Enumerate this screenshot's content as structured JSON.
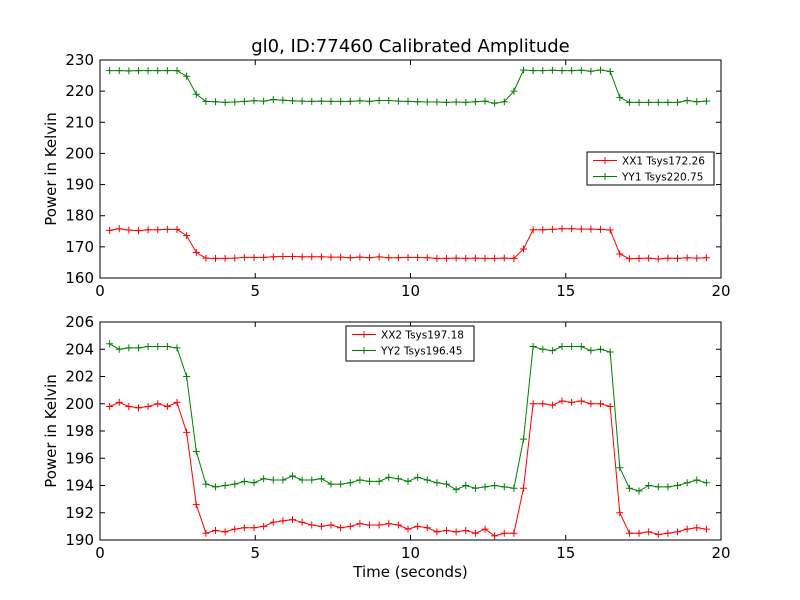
{
  "title": "gl0, ID:77460 Calibrated Amplitude",
  "colors": {
    "series1": "#ff0000",
    "series2": "#008000"
  },
  "chart_data": [
    {
      "type": "line",
      "ylabel": "Power in Kelvin",
      "xlabel": "",
      "xlim": [
        0,
        20
      ],
      "ylim": [
        160,
        230
      ],
      "xticks": [
        0,
        5,
        10,
        15,
        20
      ],
      "yticks": [
        160,
        170,
        180,
        190,
        200,
        210,
        220,
        230
      ],
      "grid": false,
      "legend_position": "center-right",
      "x": [
        0.31,
        0.62,
        0.93,
        1.24,
        1.55,
        1.86,
        2.17,
        2.48,
        2.79,
        3.1,
        3.41,
        3.72,
        4.03,
        4.34,
        4.65,
        4.96,
        5.27,
        5.58,
        5.89,
        6.2,
        6.51,
        6.82,
        7.13,
        7.44,
        7.75,
        8.06,
        8.37,
        8.68,
        8.99,
        9.3,
        9.61,
        9.92,
        10.23,
        10.54,
        10.85,
        11.16,
        11.47,
        11.78,
        12.09,
        12.4,
        12.71,
        13.02,
        13.33,
        13.64,
        13.95,
        14.26,
        14.57,
        14.88,
        15.19,
        15.5,
        15.81,
        16.12,
        16.43,
        16.74,
        17.05,
        17.36,
        17.67,
        17.98,
        18.29,
        18.6,
        18.91,
        19.22,
        19.53
      ],
      "series": [
        {
          "name": "XX1 Tsys172.26",
          "color": "#ff0000",
          "values": [
            175.3,
            175.8,
            175.4,
            175.2,
            175.5,
            175.5,
            175.6,
            175.6,
            173.6,
            168.2,
            166.4,
            166.3,
            166.3,
            166.4,
            166.6,
            166.6,
            166.6,
            166.8,
            166.9,
            166.9,
            166.8,
            166.8,
            166.8,
            166.7,
            166.7,
            166.5,
            166.7,
            166.5,
            166.8,
            166.5,
            166.5,
            166.6,
            166.6,
            166.5,
            166.3,
            166.3,
            166.4,
            166.3,
            166.4,
            166.3,
            166.3,
            166.4,
            166.3,
            169.3,
            175.5,
            175.5,
            175.6,
            175.8,
            175.8,
            175.7,
            175.7,
            175.6,
            175.4,
            167.7,
            166.2,
            166.3,
            166.4,
            166.1,
            166.4,
            166.3,
            166.5,
            166.4,
            166.5
          ]
        },
        {
          "name": "YY1 Tsys220.75",
          "color": "#008000",
          "values": [
            226.6,
            226.6,
            226.5,
            226.6,
            226.6,
            226.6,
            226.6,
            226.6,
            224.8,
            219.0,
            216.7,
            216.6,
            216.4,
            216.5,
            216.7,
            216.9,
            216.8,
            217.3,
            217.1,
            216.9,
            216.8,
            216.7,
            216.8,
            216.7,
            216.7,
            216.7,
            216.9,
            216.7,
            217.0,
            217.0,
            216.8,
            216.7,
            216.6,
            216.5,
            216.5,
            216.4,
            216.5,
            216.4,
            216.6,
            216.8,
            216.1,
            216.6,
            220.0,
            226.8,
            226.6,
            226.6,
            226.7,
            226.6,
            226.6,
            226.7,
            226.4,
            226.8,
            226.3,
            218.0,
            216.4,
            216.4,
            216.4,
            216.4,
            216.4,
            216.4,
            217.0,
            216.6,
            216.8
          ]
        }
      ]
    },
    {
      "type": "line",
      "ylabel": "Power in Kelvin",
      "xlabel": "Time (seconds)",
      "xlim": [
        0,
        20
      ],
      "ylim": [
        190,
        206
      ],
      "xticks": [
        0,
        5,
        10,
        15,
        20
      ],
      "yticks": [
        190,
        192,
        194,
        196,
        198,
        200,
        202,
        204,
        206
      ],
      "grid": false,
      "legend_position": "top-center",
      "x": [
        0.31,
        0.62,
        0.93,
        1.24,
        1.55,
        1.86,
        2.17,
        2.48,
        2.79,
        3.1,
        3.41,
        3.72,
        4.03,
        4.34,
        4.65,
        4.96,
        5.27,
        5.58,
        5.89,
        6.2,
        6.51,
        6.82,
        7.13,
        7.44,
        7.75,
        8.06,
        8.37,
        8.68,
        8.99,
        9.3,
        9.61,
        9.92,
        10.23,
        10.54,
        10.85,
        11.16,
        11.47,
        11.78,
        12.09,
        12.4,
        12.71,
        13.02,
        13.33,
        13.64,
        13.95,
        14.26,
        14.57,
        14.88,
        15.19,
        15.5,
        15.81,
        16.12,
        16.43,
        16.74,
        17.05,
        17.36,
        17.67,
        17.98,
        18.29,
        18.6,
        18.91,
        19.22,
        19.53
      ],
      "series": [
        {
          "name": "XX2 Tsys197.18",
          "color": "#ff0000",
          "values": [
            199.8,
            200.1,
            199.8,
            199.7,
            199.8,
            200.0,
            199.8,
            200.1,
            197.9,
            192.6,
            190.5,
            190.7,
            190.6,
            190.8,
            190.9,
            190.9,
            191.0,
            191.3,
            191.4,
            191.5,
            191.3,
            191.1,
            191.0,
            191.1,
            190.9,
            191.0,
            191.2,
            191.1,
            191.1,
            191.2,
            191.1,
            190.8,
            191.0,
            190.9,
            190.6,
            190.7,
            190.6,
            190.7,
            190.5,
            190.8,
            190.3,
            190.5,
            190.5,
            193.8,
            200.0,
            200.0,
            199.9,
            200.2,
            200.1,
            200.2,
            200.0,
            200.0,
            199.8,
            192.0,
            190.5,
            190.5,
            190.6,
            190.4,
            190.5,
            190.6,
            190.8,
            190.9,
            190.8
          ]
        },
        {
          "name": "YY2 Tsys196.45",
          "color": "#008000",
          "values": [
            204.4,
            204.0,
            204.1,
            204.1,
            204.2,
            204.2,
            204.2,
            204.1,
            202.0,
            196.5,
            194.1,
            193.9,
            194.0,
            194.1,
            194.3,
            194.2,
            194.5,
            194.4,
            194.4,
            194.7,
            194.4,
            194.4,
            194.5,
            194.1,
            194.1,
            194.2,
            194.4,
            194.3,
            194.3,
            194.6,
            194.5,
            194.3,
            194.6,
            194.4,
            194.2,
            194.1,
            193.7,
            194.0,
            193.8,
            193.9,
            194.0,
            193.9,
            193.8,
            197.4,
            204.2,
            204.0,
            203.9,
            204.2,
            204.2,
            204.2,
            203.9,
            204.0,
            203.8,
            195.3,
            193.8,
            193.6,
            194.0,
            193.9,
            193.9,
            194.0,
            194.2,
            194.4,
            194.2
          ]
        }
      ]
    }
  ]
}
